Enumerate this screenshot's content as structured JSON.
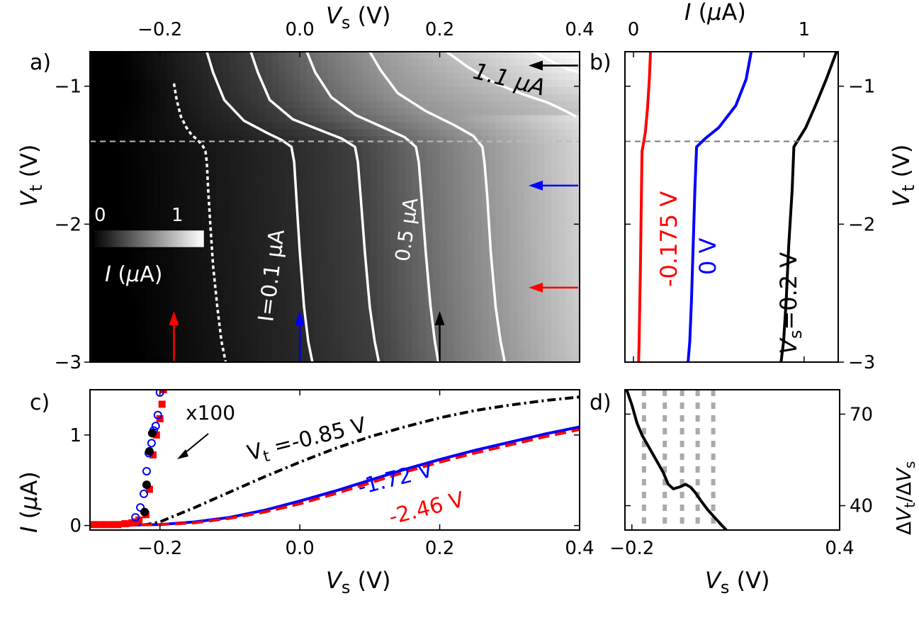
{
  "chart_data": [
    {
      "panel": "a)",
      "type": "heatmap",
      "xlabel_main": "V",
      "xlabel_sub": "s",
      "xlabel_unit": " (V)",
      "xlim": [
        -0.3,
        0.4
      ],
      "xticks": [
        -0.2,
        0.0,
        0.2,
        0.4
      ],
      "xtick_labels": [
        "−0.2",
        "0.0",
        "0.2",
        "0.4"
      ],
      "ylabel_main": "V",
      "ylabel_sub": "t",
      "ylabel_unit": " (V)",
      "ylim": [
        -3.0,
        -0.75
      ],
      "yticks": [
        -1,
        -2,
        -3
      ],
      "ytick_labels": [
        "−1",
        "−2",
        "−3"
      ],
      "colorbar": {
        "label": "I (μA)",
        "min_label": "0",
        "max_label": "1",
        "range": [
          0,
          1.2
        ],
        "colormap": "gray"
      },
      "dashed_line_vt": -1.4,
      "series": [
        {
          "level": 0.1,
          "style": "dotted",
          "x": [
            -0.18,
            -0.176,
            -0.17,
            -0.162,
            -0.155,
            -0.146,
            -0.139,
            -0.135,
            -0.133,
            -0.131,
            -0.128,
            -0.124,
            -0.118,
            -0.112,
            -0.106
          ],
          "y": [
            -0.98,
            -1.1,
            -1.22,
            -1.3,
            -1.35,
            -1.39,
            -1.43,
            -1.47,
            -1.55,
            -1.75,
            -2.0,
            -2.3,
            -2.6,
            -2.85,
            -3.0
          ]
        },
        {
          "level": 0.2,
          "style": "solid",
          "x": [
            -0.133,
            -0.124,
            -0.108,
            -0.08,
            -0.046,
            -0.026,
            -0.012,
            -0.008,
            -0.005,
            0.0,
            0.006,
            0.012,
            0.018
          ],
          "y": [
            -0.75,
            -0.9,
            -1.1,
            -1.25,
            -1.34,
            -1.39,
            -1.44,
            -1.55,
            -1.8,
            -2.2,
            -2.6,
            -2.85,
            -3.0
          ]
        },
        {
          "level": 0.3,
          "style": "solid",
          "x": [
            -0.07,
            -0.06,
            -0.043,
            -0.01,
            0.03,
            0.06,
            0.079,
            0.083,
            0.087,
            0.093,
            0.1,
            0.107,
            0.113
          ],
          "y": [
            -0.75,
            -0.9,
            -1.1,
            -1.24,
            -1.32,
            -1.38,
            -1.44,
            -1.55,
            -1.8,
            -2.2,
            -2.6,
            -2.85,
            -3.0
          ]
        },
        {
          "level": 0.5,
          "style": "solid",
          "x": [
            0.01,
            0.022,
            0.045,
            0.08,
            0.12,
            0.15,
            0.166,
            0.17,
            0.174,
            0.18,
            0.187,
            0.193,
            0.198
          ],
          "y": [
            -0.75,
            -0.9,
            -1.08,
            -1.21,
            -1.3,
            -1.37,
            -1.44,
            -1.55,
            -1.8,
            -2.2,
            -2.6,
            -2.85,
            -3.0
          ]
        },
        {
          "level": 0.7,
          "style": "solid",
          "x": [
            0.1,
            0.115,
            0.14,
            0.18,
            0.22,
            0.248,
            0.261,
            0.264,
            0.268,
            0.273,
            0.28,
            0.287,
            0.293
          ],
          "y": [
            -0.75,
            -0.88,
            -1.05,
            -1.18,
            -1.28,
            -1.36,
            -1.44,
            -1.55,
            -1.8,
            -2.2,
            -2.6,
            -2.85,
            -3.0
          ]
        },
        {
          "level": 0.9,
          "style": "solid",
          "x": [
            0.21,
            0.24,
            0.28,
            0.32,
            0.355,
            0.38,
            0.395
          ],
          "y": [
            -0.75,
            -0.86,
            -0.98,
            -1.06,
            -1.12,
            -1.18,
            -1.22
          ]
        },
        {
          "level": 1.1,
          "style": "solid",
          "x": [
            0.335,
            0.36,
            0.38,
            0.4
          ],
          "y": [
            -0.75,
            -0.82,
            -0.87,
            -0.9
          ]
        }
      ],
      "annotations": {
        "label_01": "I=0.1 μA",
        "label_05": "0.5 μA",
        "label_11": "1.1 μA",
        "arrows_vertical": [
          {
            "x": -0.18,
            "color": "#ff0000"
          },
          {
            "x": 0.0,
            "color": "#0000ff"
          },
          {
            "x": 0.2,
            "color": "#000000"
          }
        ],
        "arrows_horizontal": [
          {
            "y": -0.85,
            "color": "#000000"
          },
          {
            "y": -1.72,
            "color": "#0000ff"
          },
          {
            "y": -2.46,
            "color": "#ff0000"
          }
        ]
      }
    },
    {
      "panel": "b)",
      "type": "line",
      "xlabel_main": "I",
      "xlabel_unit": " (μA)",
      "xlim": [
        -0.05,
        1.2
      ],
      "xticks": [
        0,
        1
      ],
      "xtick_labels": [
        "0",
        "1"
      ],
      "ylabel_main": "V",
      "ylabel_sub": "t",
      "ylabel_unit": " (V)",
      "ylim": [
        -3.0,
        -0.75
      ],
      "yticks": [
        -1,
        -2,
        -3
      ],
      "ytick_labels": [
        "−1",
        "−2",
        "−3"
      ],
      "dashed_line_vt": -1.4,
      "series": [
        {
          "label": "-0.175 V",
          "color": "#ff0000",
          "x": [
            0.1,
            0.093,
            0.083,
            0.07,
            0.058,
            0.05,
            0.045,
            0.041,
            0.037,
            0.033,
            0.03
          ],
          "y": [
            -0.75,
            -0.95,
            -1.15,
            -1.33,
            -1.42,
            -1.47,
            -1.9,
            -2.3,
            -2.6,
            -2.85,
            -3.0
          ]
        },
        {
          "label": "0 V",
          "color": "#0000ff",
          "x": [
            0.69,
            0.66,
            0.6,
            0.5,
            0.42,
            0.37,
            0.36,
            0.35,
            0.34,
            0.33,
            0.32
          ],
          "y": [
            -0.75,
            -0.95,
            -1.14,
            -1.3,
            -1.38,
            -1.44,
            -1.75,
            -2.15,
            -2.55,
            -2.85,
            -3.0
          ]
        },
        {
          "label_main": "V",
          "label_sub": "s",
          "label_rest": "=0.2 V",
          "color": "#000000",
          "x": [
            1.19,
            1.13,
            1.07,
            1.01,
            0.97,
            0.94,
            0.93,
            0.91,
            0.895,
            0.88,
            0.865
          ],
          "y": [
            -0.75,
            -0.95,
            -1.13,
            -1.3,
            -1.38,
            -1.44,
            -1.75,
            -2.15,
            -2.55,
            -2.85,
            -3.0
          ]
        }
      ]
    },
    {
      "panel": "c)",
      "type": "line",
      "xlabel_main": "V",
      "xlabel_sub": "s",
      "xlabel_unit": " (V)",
      "xlim": [
        -0.3,
        0.4
      ],
      "xticks": [
        -0.2,
        0.0,
        0.2,
        0.4
      ],
      "xtick_labels": [
        "−0.2",
        "0.0",
        "0.2",
        "0.4"
      ],
      "ylabel_main": "I",
      "ylabel_unit": " (μA)",
      "ylim": [
        -0.05,
        1.5
      ],
      "yticks": [
        0,
        1
      ],
      "ytick_labels": [
        "0",
        "1"
      ],
      "series": [
        {
          "name_main": "V",
          "name_sub": "t",
          "name_rest": " =-0.85 V",
          "color": "#000000",
          "style": "dashdot",
          "x": [
            -0.3,
            -0.25,
            -0.22,
            -0.2,
            -0.15,
            -0.1,
            -0.05,
            0.0,
            0.05,
            0.1,
            0.15,
            0.2,
            0.25,
            0.3,
            0.35,
            0.4
          ],
          "y": [
            0.0,
            0.0,
            0.01,
            0.04,
            0.2,
            0.37,
            0.54,
            0.7,
            0.85,
            0.98,
            1.09,
            1.19,
            1.27,
            1.33,
            1.38,
            1.42
          ]
        },
        {
          "name": "-1.72 V",
          "color": "#0000ff",
          "style": "solid",
          "x": [
            -0.3,
            -0.2,
            -0.15,
            -0.1,
            -0.05,
            0.0,
            0.05,
            0.1,
            0.15,
            0.2,
            0.25,
            0.3,
            0.35,
            0.4
          ],
          "y": [
            0.0,
            0.01,
            0.04,
            0.09,
            0.17,
            0.27,
            0.38,
            0.5,
            0.62,
            0.73,
            0.83,
            0.92,
            1.01,
            1.09
          ]
        },
        {
          "name": "-2.46 V",
          "color": "#ff0000",
          "style": "dashed",
          "x": [
            -0.3,
            -0.2,
            -0.15,
            -0.1,
            -0.05,
            0.0,
            0.05,
            0.1,
            0.15,
            0.2,
            0.25,
            0.3,
            0.35,
            0.4
          ],
          "y": [
            0.0,
            0.01,
            0.03,
            0.08,
            0.15,
            0.24,
            0.35,
            0.47,
            0.59,
            0.7,
            0.8,
            0.89,
            0.98,
            1.06
          ]
        }
      ],
      "scatter_x100": {
        "label": "x100",
        "black": {
          "x": [
            -0.222,
            -0.219,
            -0.215,
            -0.211
          ],
          "y": [
            0.15,
            0.45,
            0.82,
            1.02
          ]
        },
        "blue_open": {
          "x": [
            -0.235,
            -0.228,
            -0.223,
            -0.219,
            -0.216,
            -0.212,
            -0.209,
            -0.206,
            -0.203,
            -0.2
          ],
          "y": [
            0.09,
            0.2,
            0.35,
            0.6,
            0.8,
            0.91,
            1.05,
            1.1,
            1.22,
            1.47
          ]
        },
        "red_square": {
          "x": [
            -0.3,
            -0.29,
            -0.28,
            -0.27,
            -0.26,
            -0.25,
            -0.24,
            -0.235,
            -0.23,
            -0.22,
            -0.215,
            -0.21,
            -0.205,
            -0.2,
            -0.197,
            -0.195
          ],
          "y": [
            0.01,
            0.01,
            0.01,
            0.01,
            0.01,
            0.02,
            0.03,
            0.04,
            0.06,
            0.12,
            0.4,
            0.78,
            1.0,
            1.18,
            1.34,
            1.5
          ]
        }
      }
    },
    {
      "panel": "d)",
      "type": "line",
      "xlabel_main": "V",
      "xlabel_sub": "s",
      "xlabel_unit": " (V)",
      "xlim": [
        -0.22,
        0.4
      ],
      "xticks": [
        -0.2,
        0.4
      ],
      "xtick_labels": [
        "−0.2",
        "0.4"
      ],
      "ylim": [
        32,
        78
      ],
      "yticks": [
        40,
        70
      ],
      "ytick_labels": [
        "40",
        "70"
      ],
      "ylabel": "ΔVt/ΔVs",
      "vlines_x": [
        -0.165,
        -0.105,
        -0.055,
        -0.01,
        0.035
      ],
      "series": [
        {
          "color": "#000000",
          "x": [
            -0.215,
            -0.2,
            -0.185,
            -0.17,
            -0.15,
            -0.13,
            -0.11,
            -0.095,
            -0.08,
            -0.06,
            -0.045,
            -0.03,
            -0.015,
            0.0,
            0.02,
            0.04,
            0.06,
            0.073
          ],
          "y": [
            78,
            73,
            67,
            63,
            59,
            55,
            51,
            47,
            45.5,
            46.2,
            47,
            46,
            44,
            41.5,
            38.5,
            36,
            33.5,
            32
          ]
        }
      ]
    }
  ]
}
